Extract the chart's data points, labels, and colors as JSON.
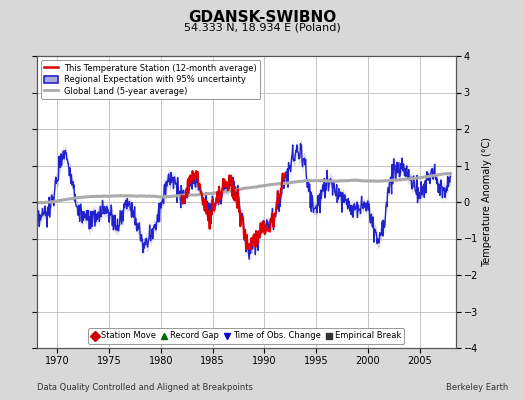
{
  "title": "GDANSK-SWIBNO",
  "subtitle": "54.333 N, 18.934 E (Poland)",
  "ylabel": "Temperature Anomaly (°C)",
  "xlabel_left": "Data Quality Controlled and Aligned at Breakpoints",
  "xlabel_right": "Berkeley Earth",
  "ylim": [
    -4,
    4
  ],
  "xlim": [
    1968.0,
    2008.5
  ],
  "xticks": [
    1970,
    1975,
    1980,
    1985,
    1990,
    1995,
    2000,
    2005
  ],
  "yticks": [
    -4,
    -3,
    -2,
    -1,
    0,
    1,
    2,
    3,
    4
  ],
  "bg_color": "#d8d8d8",
  "plot_bg_color": "#ffffff",
  "grid_color": "#bbbbbb",
  "title_fontsize": 11,
  "subtitle_fontsize": 8,
  "tick_fontsize": 7,
  "ylabel_fontsize": 7,
  "legend_fontsize": 6,
  "footer_fontsize": 6,
  "blue_color": "#2222cc",
  "blue_fill": "#aaaadd",
  "red_color": "#dd0000",
  "gray_color": "#aaaaaa",
  "legend1_labels": [
    "This Temperature Station (12-month average)",
    "Regional Expectation with 95% uncertainty",
    "Global Land (5-year average)"
  ],
  "legend2_labels": [
    "Station Move",
    "Record Gap",
    "Time of Obs. Change",
    "Empirical Break"
  ],
  "legend2_markers": [
    "D",
    "^",
    "v",
    "s"
  ],
  "legend2_colors": [
    "#cc0000",
    "#006600",
    "#0000cc",
    "#333333"
  ]
}
